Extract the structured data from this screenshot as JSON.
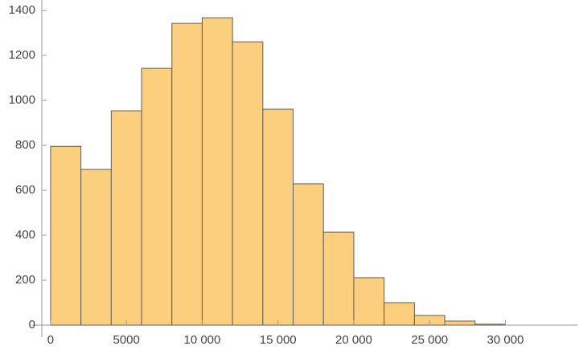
{
  "chart_data": {
    "type": "histogram",
    "bins": [
      0,
      2000,
      4000,
      6000,
      8000,
      10000,
      12000,
      14000,
      16000,
      18000,
      20000,
      22000,
      24000,
      26000,
      28000,
      30000
    ],
    "values": [
      796,
      693,
      954,
      1143,
      1343,
      1368,
      1261,
      961,
      629,
      414,
      211,
      100,
      43,
      18,
      4
    ],
    "color": "#fccf7e",
    "xlim": [
      -580,
      34750
    ],
    "ylim": [
      0,
      1440
    ],
    "xticks": [
      0,
      5000,
      {
        "value": 10000,
        "label": "10 000"
      },
      {
        "value": 15000,
        "label": "15 000"
      },
      {
        "value": 20000,
        "label": "20 000"
      },
      {
        "value": 25000,
        "label": "25 000"
      },
      {
        "value": 30000,
        "label": "30 000"
      }
    ],
    "yticks": [
      0,
      200,
      400,
      600,
      800,
      1000,
      1200,
      1400
    ],
    "grid": false
  }
}
